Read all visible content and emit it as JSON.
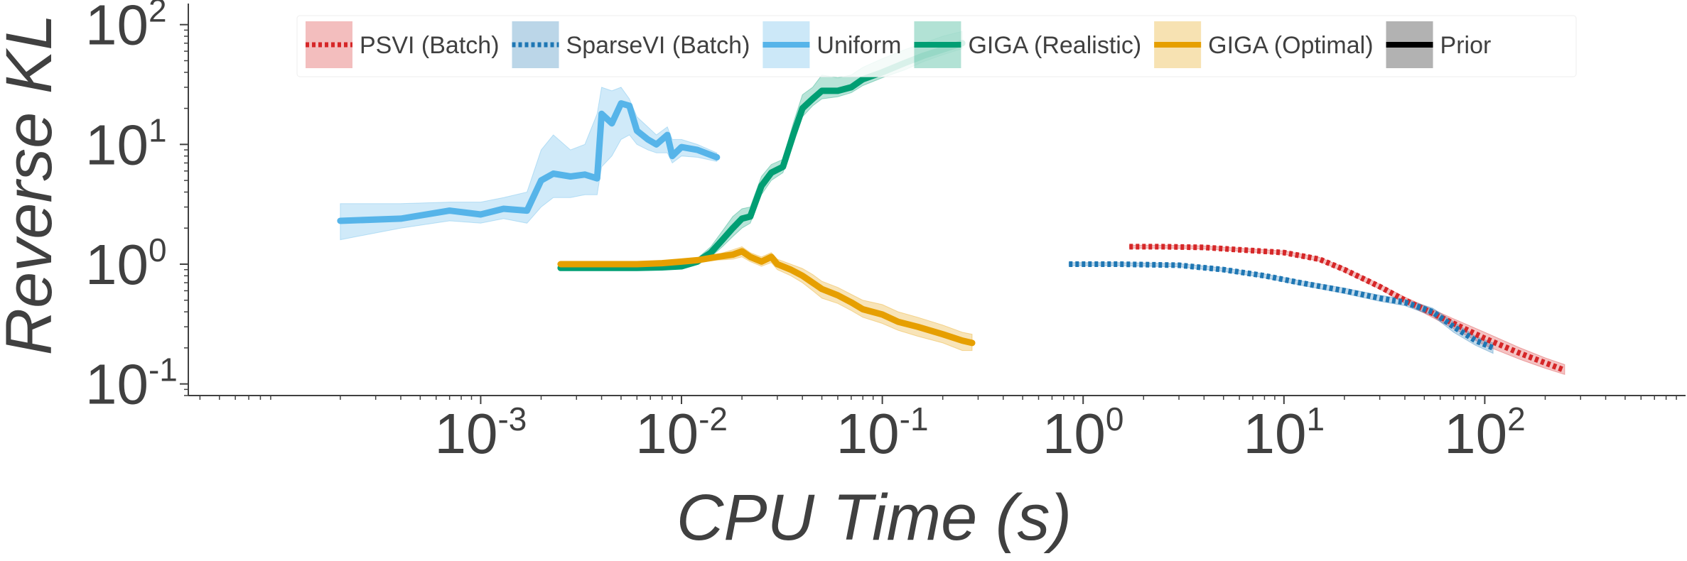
{
  "chart_data": {
    "type": "line",
    "xlabel": "CPU Time (s)",
    "ylabel": "Reverse KL",
    "x_scale": "log",
    "y_scale": "log",
    "xlim": [
      3.5e-05,
      1000
    ],
    "ylim": [
      0.08,
      150
    ],
    "x_ticks": [
      {
        "value": 0.001,
        "base": "10",
        "exp": "-3"
      },
      {
        "value": 0.01,
        "base": "10",
        "exp": "-2"
      },
      {
        "value": 0.1,
        "base": "10",
        "exp": "-1"
      },
      {
        "value": 1,
        "base": "10",
        "exp": "0"
      },
      {
        "value": 10,
        "base": "10",
        "exp": "1"
      },
      {
        "value": 100,
        "base": "10",
        "exp": "2"
      }
    ],
    "y_ticks": [
      {
        "value": 0.1,
        "base": "10",
        "exp": "-1"
      },
      {
        "value": 1,
        "base": "10",
        "exp": "0"
      },
      {
        "value": 10,
        "base": "10",
        "exp": "1"
      },
      {
        "value": 100,
        "base": "10",
        "exp": "2"
      }
    ],
    "grid": false,
    "legend": {
      "placement": "top",
      "entries": [
        {
          "label": "PSVI (Batch)",
          "color": "#d62728",
          "style": "dotted"
        },
        {
          "label": "SparseVI (Batch)",
          "color": "#1f77b4",
          "style": "dotted"
        },
        {
          "label": "Uniform",
          "color": "#56b4e9",
          "style": "solid"
        },
        {
          "label": "GIGA (Realistic)",
          "color": "#009e73",
          "style": "solid"
        },
        {
          "label": "GIGA (Optimal)",
          "color": "#e69f00",
          "style": "solid"
        },
        {
          "label": "Prior",
          "color": "#000000",
          "style": "solid"
        }
      ]
    },
    "series": [
      {
        "name": "Uniform",
        "color": "#56b4e9",
        "style": "solid",
        "x": [
          0.0002,
          0.0004,
          0.0007,
          0.001,
          0.0013,
          0.0017,
          0.002,
          0.0023,
          0.0028,
          0.0033,
          0.0038,
          0.004,
          0.0045,
          0.005,
          0.0055,
          0.006,
          0.0068,
          0.0075,
          0.0085,
          0.009,
          0.01,
          0.012,
          0.015
        ],
        "y": [
          2.3,
          2.4,
          2.8,
          2.6,
          2.9,
          2.8,
          5.0,
          5.7,
          5.4,
          5.6,
          5.2,
          18.0,
          15.0,
          22.0,
          21.0,
          13.0,
          11.0,
          10.0,
          12.0,
          8.0,
          9.5,
          9.0,
          7.8
        ],
        "lower": [
          1.6,
          2.0,
          2.3,
          2.2,
          2.4,
          2.2,
          3.0,
          3.6,
          3.6,
          3.8,
          3.8,
          6.5,
          8.0,
          11.0,
          12.0,
          10.0,
          9.0,
          8.5,
          8.5,
          7.0,
          8.0,
          7.8,
          7.2
        ],
        "upper": [
          3.2,
          3.2,
          3.3,
          3.3,
          3.6,
          4.0,
          9.0,
          12.0,
          9.0,
          10.0,
          18.0,
          30.0,
          28.0,
          30.0,
          24.0,
          17.0,
          14.0,
          12.0,
          14.0,
          11.0,
          11.0,
          10.0,
          8.5
        ]
      },
      {
        "name": "GIGA (Realistic)",
        "color": "#009e73",
        "style": "solid",
        "x": [
          0.0025,
          0.004,
          0.006,
          0.008,
          0.01,
          0.012,
          0.014,
          0.016,
          0.018,
          0.02,
          0.022,
          0.025,
          0.028,
          0.032,
          0.036,
          0.04,
          0.045,
          0.05,
          0.06,
          0.07,
          0.08,
          0.1,
          0.13,
          0.16,
          0.2,
          0.25
        ],
        "y": [
          0.93,
          0.93,
          0.93,
          0.94,
          0.96,
          1.05,
          1.25,
          1.6,
          2.0,
          2.4,
          2.5,
          4.5,
          5.8,
          6.5,
          12.0,
          20.0,
          24.0,
          28.0,
          28.0,
          30.0,
          35.0,
          40.0,
          48.0,
          55.0,
          62.0,
          70.0
        ],
        "lower": [
          0.9,
          0.9,
          0.9,
          0.91,
          0.93,
          1.0,
          1.15,
          1.4,
          1.7,
          2.0,
          2.2,
          3.8,
          5.0,
          5.8,
          10.0,
          17.0,
          21.0,
          24.0,
          25.0,
          27.0,
          31.0,
          36.0,
          42.0,
          49.0,
          56.0,
          63.0
        ],
        "upper": [
          0.97,
          0.97,
          0.97,
          0.98,
          1.0,
          1.12,
          1.4,
          1.9,
          2.5,
          2.9,
          3.0,
          5.4,
          6.8,
          7.5,
          15.0,
          26.0,
          30.0,
          38.0,
          36.0,
          38.0,
          44.0,
          52.0,
          62.0,
          70.0,
          80.0,
          88.0
        ]
      },
      {
        "name": "GIGA (Optimal)",
        "color": "#e69f00",
        "style": "solid",
        "x": [
          0.0025,
          0.004,
          0.006,
          0.008,
          0.01,
          0.012,
          0.015,
          0.018,
          0.02,
          0.022,
          0.025,
          0.028,
          0.03,
          0.035,
          0.04,
          0.045,
          0.05,
          0.06,
          0.07,
          0.08,
          0.1,
          0.12,
          0.15,
          0.2,
          0.25,
          0.28
        ],
        "y": [
          1.0,
          1.0,
          1.0,
          1.02,
          1.05,
          1.08,
          1.15,
          1.2,
          1.28,
          1.15,
          1.05,
          1.15,
          1.0,
          0.9,
          0.8,
          0.7,
          0.62,
          0.55,
          0.48,
          0.42,
          0.38,
          0.33,
          0.3,
          0.26,
          0.23,
          0.22
        ],
        "lower": [
          0.96,
          0.96,
          0.96,
          0.98,
          1.0,
          1.03,
          1.08,
          1.1,
          1.15,
          1.05,
          0.96,
          1.03,
          0.9,
          0.8,
          0.7,
          0.6,
          0.52,
          0.47,
          0.41,
          0.36,
          0.32,
          0.28,
          0.25,
          0.22,
          0.19,
          0.19
        ],
        "upper": [
          1.04,
          1.04,
          1.04,
          1.06,
          1.1,
          1.13,
          1.2,
          1.32,
          1.4,
          1.25,
          1.15,
          1.25,
          1.1,
          1.0,
          0.92,
          0.82,
          0.72,
          0.64,
          0.56,
          0.5,
          0.46,
          0.4,
          0.36,
          0.31,
          0.27,
          0.26
        ]
      },
      {
        "name": "PSVI (Batch)",
        "color": "#d62728",
        "style": "dotted",
        "x": [
          1.7,
          2.5,
          4,
          6,
          10,
          15,
          20,
          30,
          40,
          50,
          70,
          100,
          150,
          200,
          250
        ],
        "y": [
          1.4,
          1.4,
          1.38,
          1.32,
          1.25,
          1.1,
          0.9,
          0.65,
          0.5,
          0.42,
          0.32,
          0.24,
          0.18,
          0.15,
          0.13
        ],
        "lower": [
          1.36,
          1.36,
          1.34,
          1.28,
          1.21,
          1.06,
          0.86,
          0.62,
          0.47,
          0.39,
          0.29,
          0.21,
          0.16,
          0.135,
          0.12
        ],
        "upper": [
          1.44,
          1.44,
          1.42,
          1.36,
          1.29,
          1.14,
          0.94,
          0.68,
          0.53,
          0.45,
          0.35,
          0.27,
          0.2,
          0.165,
          0.145
        ]
      },
      {
        "name": "SparseVI (Batch)",
        "color": "#1f77b4",
        "style": "dotted",
        "x": [
          0.85,
          1.5,
          3,
          5,
          8,
          12,
          20,
          30,
          40,
          55,
          70,
          90,
          110
        ],
        "y": [
          1.0,
          1.0,
          0.98,
          0.9,
          0.8,
          0.7,
          0.6,
          0.52,
          0.48,
          0.4,
          0.3,
          0.23,
          0.2
        ],
        "lower": [
          0.97,
          0.97,
          0.95,
          0.87,
          0.77,
          0.67,
          0.57,
          0.49,
          0.45,
          0.37,
          0.27,
          0.21,
          0.18
        ],
        "upper": [
          1.03,
          1.03,
          1.01,
          0.93,
          0.83,
          0.73,
          0.63,
          0.55,
          0.51,
          0.43,
          0.33,
          0.25,
          0.22
        ]
      }
    ]
  }
}
